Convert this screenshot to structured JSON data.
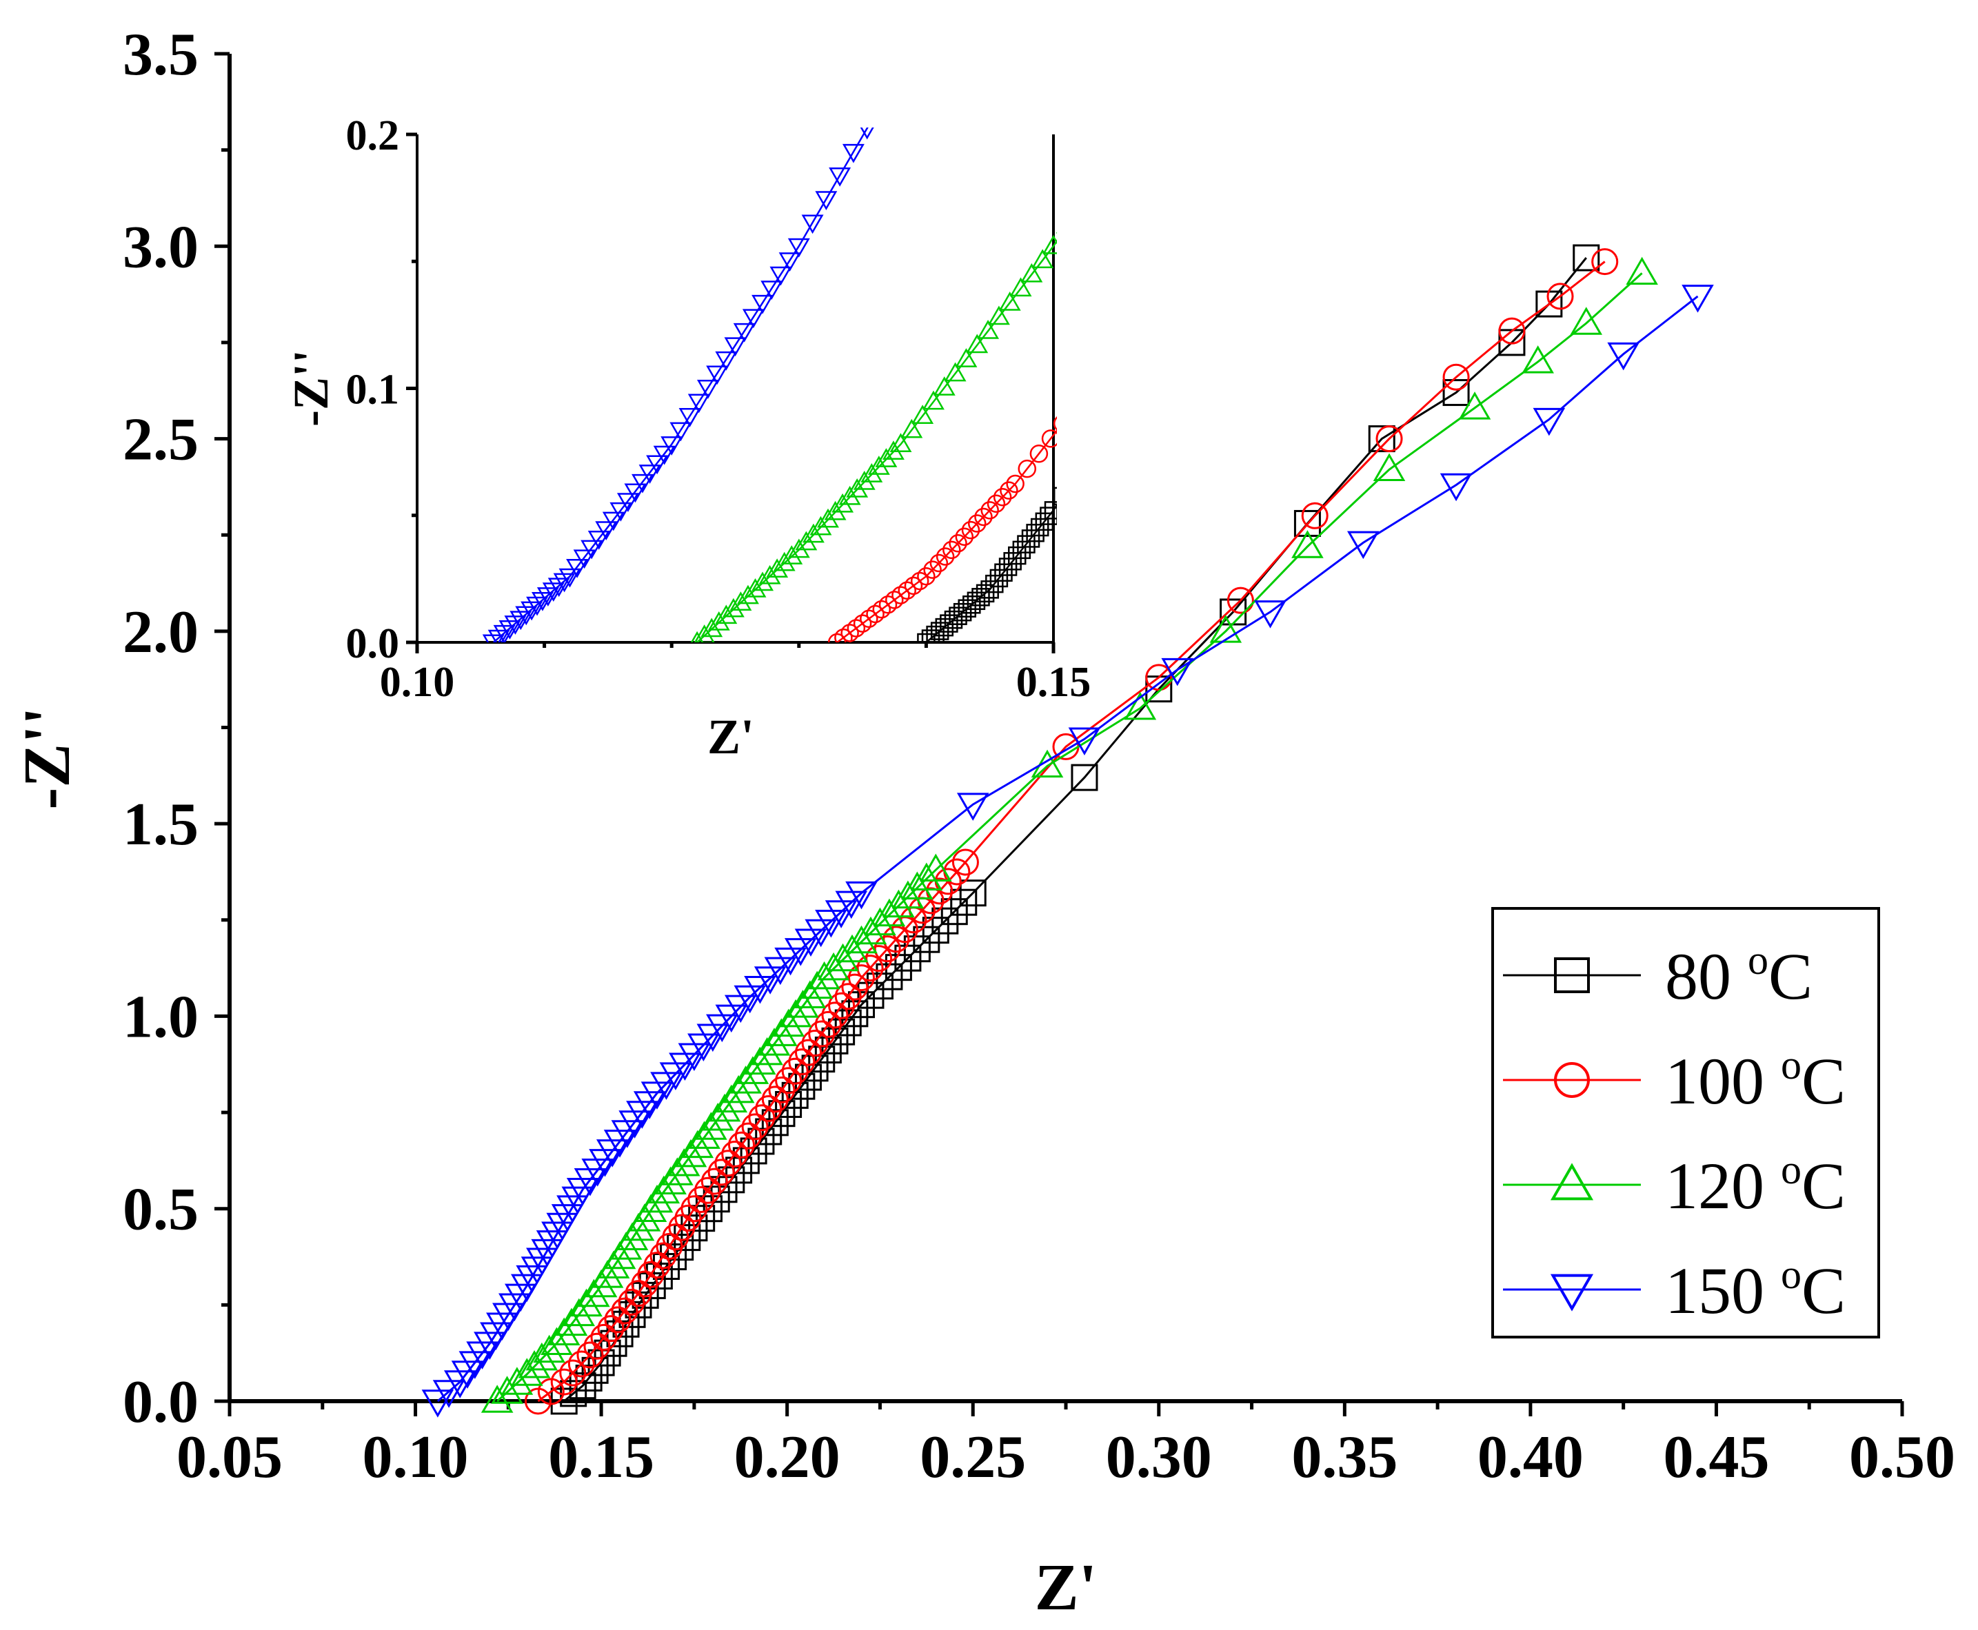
{
  "chart_data": {
    "type": "scatter",
    "main": {
      "xlabel": "Z'",
      "ylabel": "-Z''",
      "xlim": [
        0.05,
        0.5
      ],
      "ylim": [
        0.0,
        3.5
      ],
      "xticks": [
        "0.05",
        "0.10",
        "0.15",
        "0.20",
        "0.25",
        "0.30",
        "0.35",
        "0.40",
        "0.45",
        "0.50"
      ],
      "yticks": [
        "0.0",
        "0.5",
        "1.0",
        "1.5",
        "2.0",
        "2.5",
        "3.0",
        "3.5"
      ]
    },
    "inset": {
      "xlabel": "Z'",
      "ylabel": "-Z''",
      "xlim": [
        0.1,
        0.15
      ],
      "ylim": [
        0.0,
        0.2
      ],
      "xticks": [
        "0.10",
        "0.15"
      ],
      "yticks": [
        "0.0",
        "0.1",
        "0.2"
      ]
    },
    "legend_position": "bottom-right",
    "series": [
      {
        "name": "80 ºC",
        "label_number": "80",
        "label_unit": "C",
        "marker": "square",
        "color": "#000000",
        "x": [
          0.14,
          0.145,
          0.15,
          0.16,
          0.175,
          0.195,
          0.22,
          0.25,
          0.28,
          0.3,
          0.32,
          0.34,
          0.36,
          0.38,
          0.395,
          0.405,
          0.415
        ],
        "y": [
          0.0,
          0.04,
          0.1,
          0.25,
          0.45,
          0.7,
          1.03,
          1.32,
          1.62,
          1.85,
          2.05,
          2.28,
          2.5,
          2.62,
          2.75,
          2.85,
          2.97
        ]
      },
      {
        "name": "100 ºC",
        "label_number": "100",
        "label_unit": "C",
        "marker": "circle",
        "color": "#ff0000",
        "x": [
          0.133,
          0.14,
          0.147,
          0.16,
          0.175,
          0.195,
          0.22,
          0.248,
          0.275,
          0.3,
          0.322,
          0.342,
          0.362,
          0.38,
          0.395,
          0.408,
          0.42
        ],
        "y": [
          0.0,
          0.05,
          0.12,
          0.28,
          0.5,
          0.76,
          1.1,
          1.4,
          1.7,
          1.88,
          2.08,
          2.3,
          2.5,
          2.66,
          2.78,
          2.87,
          2.96
        ]
      },
      {
        "name": "120 ºC",
        "label_number": "120",
        "label_unit": "C",
        "marker": "triangle-up",
        "color": "#00cc00",
        "x": [
          0.122,
          0.13,
          0.138,
          0.15,
          0.165,
          0.185,
          0.21,
          0.24,
          0.27,
          0.295,
          0.318,
          0.34,
          0.362,
          0.385,
          0.402,
          0.415,
          0.43
        ],
        "y": [
          0.0,
          0.07,
          0.15,
          0.3,
          0.52,
          0.78,
          1.1,
          1.38,
          1.65,
          1.8,
          2.0,
          2.22,
          2.42,
          2.58,
          2.7,
          2.8,
          2.93
        ]
      },
      {
        "name": "150 ºC",
        "label_number": "150",
        "label_unit": "C",
        "marker": "triangle-down",
        "color": "#0000ff",
        "x": [
          0.106,
          0.112,
          0.12,
          0.13,
          0.145,
          0.165,
          0.19,
          0.22,
          0.25,
          0.28,
          0.305,
          0.33,
          0.355,
          0.38,
          0.405,
          0.425,
          0.445
        ],
        "y": [
          0.0,
          0.05,
          0.15,
          0.3,
          0.55,
          0.8,
          1.05,
          1.32,
          1.55,
          1.72,
          1.9,
          2.05,
          2.23,
          2.38,
          2.55,
          2.72,
          2.87
        ]
      }
    ]
  }
}
